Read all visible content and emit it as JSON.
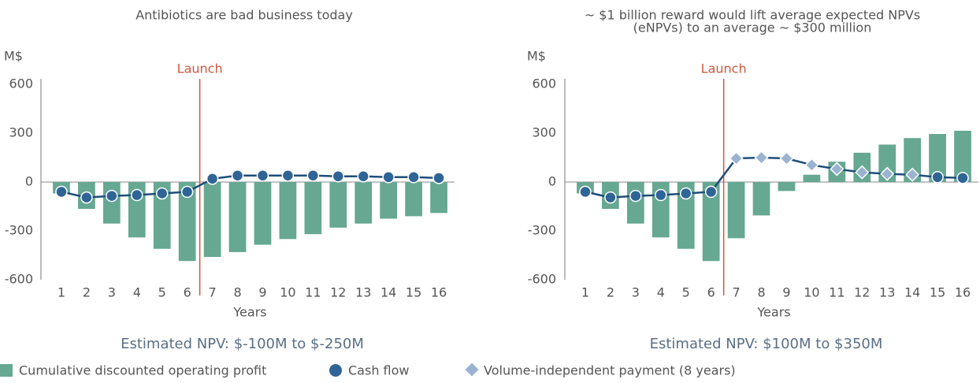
{
  "chart_data": [
    {
      "type": "bar-line",
      "title": "Antibiotics are bad business today",
      "ylabel": "M$",
      "xlabel": "Years",
      "subtitle": "Estimated NPV: $-100M to $-250M",
      "annotation": {
        "text": "Launch",
        "x": 6.5,
        "color": "#d0583f"
      },
      "categories": [
        1,
        2,
        3,
        4,
        5,
        6,
        7,
        8,
        9,
        10,
        11,
        12,
        13,
        14,
        15,
        16
      ],
      "ylim": [
        -600,
        600
      ],
      "yticks": [
        -600,
        -300,
        0,
        300,
        600
      ],
      "series": [
        {
          "kind": "bar",
          "color": "#66a892",
          "values": [
            -70,
            -165,
            -255,
            -340,
            -410,
            -485,
            -460,
            -430,
            -385,
            -350,
            -320,
            -280,
            -255,
            -225,
            -210,
            -190
          ]
        },
        {
          "kind": "line",
          "color": "#1f4e79",
          "marker": "circle",
          "marker_color": "#2f6496",
          "values": [
            -60,
            -95,
            -85,
            -80,
            -70,
            -60,
            20,
            40,
            40,
            40,
            40,
            35,
            35,
            30,
            30,
            25
          ]
        }
      ]
    },
    {
      "type": "bar-line",
      "title": [
        "~ $1 billion reward would lift average expected NPVs",
        "(eNPVs) to an average ~ $300 million"
      ],
      "ylabel": "M$",
      "xlabel": "Years",
      "subtitle": "Estimated NPV: $100M to $350M",
      "annotation": {
        "text": "Launch",
        "x": 6.5,
        "color": "#d0583f"
      },
      "categories": [
        1,
        2,
        3,
        4,
        5,
        6,
        7,
        8,
        9,
        10,
        11,
        12,
        13,
        14,
        15,
        16
      ],
      "ylim": [
        -600,
        600
      ],
      "yticks": [
        -600,
        -300,
        0,
        300,
        600
      ],
      "series": [
        {
          "name": "Cumulative discounted operating profit",
          "kind": "bar",
          "color": "#66a892",
          "values": [
            -70,
            -165,
            -255,
            -340,
            -410,
            -485,
            -345,
            -205,
            -55,
            45,
            125,
            180,
            230,
            270,
            295,
            315
          ]
        },
        {
          "name": "Cash flow",
          "kind": "line",
          "color": "#1f4e79",
          "marker": "circle",
          "marker_color": "#2f6496",
          "values": [
            -60,
            -95,
            -85,
            -80,
            -70,
            -60,
            145,
            150,
            145,
            105,
            80,
            60,
            50,
            45,
            30,
            25
          ]
        },
        {
          "name": "Volume-independent payment (8 years)",
          "kind": "points",
          "marker": "diamond",
          "marker_color": "#9ab3d0",
          "values": [
            null,
            null,
            null,
            null,
            null,
            null,
            145,
            150,
            145,
            105,
            80,
            60,
            50,
            45,
            null,
            null
          ]
        }
      ]
    }
  ]
}
